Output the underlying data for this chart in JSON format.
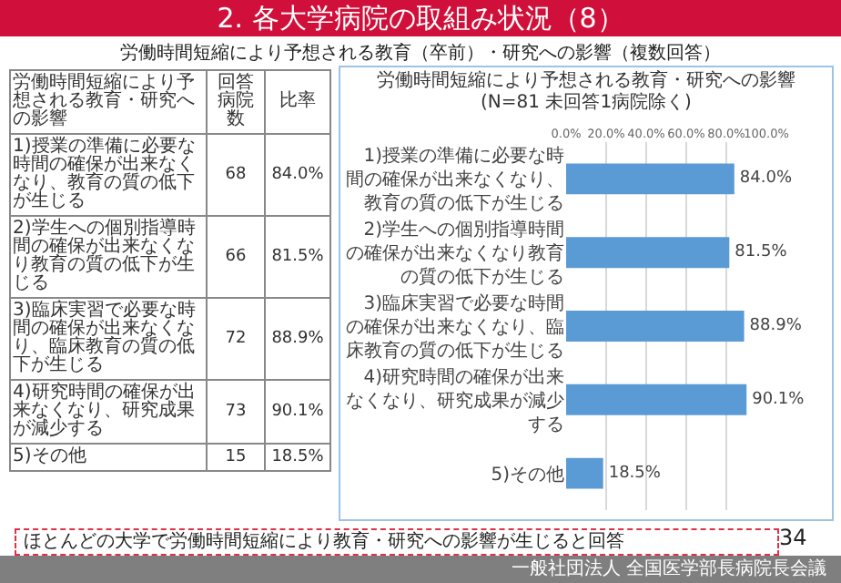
{
  "chart_data": [
    {
      "type": "other",
      "title": "2. 各大学病院の取組み状況（8）",
      "subtitle": "労働時間短縮により予想される教育（卒前）・研究への影響（複数回答）",
      "xlabel": "労働時間短縮により予想される教育・研究への影響",
      "categories": [
        "1)授業の準備に必要な時間の確保が出来なくなり、教育の質の低下が生じる",
        "2)学生への個別指導時間の確保が出来なくなり教育の質の低下が生じる",
        "3)臨床実習で必要な時間の確保が出来なくなり、臨床教育の質の低下が生じる",
        "4)研究時間の確保が出来なくなり、研究成果が減少する",
        "5)その他"
      ],
      "series": [
        {
          "name": "回答病院数",
          "values": [
            68,
            66,
            72,
            73,
            15
          ]
        },
        {
          "name": "比率",
          "values": [
            84.0,
            81.5,
            88.9,
            90.1,
            18.5
          ],
          "value_labels": [
            "84.0%",
            "81.5%",
            "88.9%",
            "90.1%",
            "18.5%"
          ]
        }
      ],
      "data_labels": true,
      "annotations": [
        "ほとんどの大学で労働時間短縮により教育・研究への影響が生じると回答",
        "34",
        "一般社団法人 全国医学部長病院長会議"
      ]
    },
    {
      "type": "bar",
      "orientation": "horizontal",
      "title": "労働時間短縮により予想される教育・研究への影響",
      "subtitle": "(N=81 未回答1病院除く)",
      "categories": [
        "1)授業の準備に必要な時間の確保が出来なくなり、教育の質の低下が生じる",
        "2)学生への個別指導時間の確保が出来なくなり教育の質の低下が生じる",
        "3)臨床実習で必要な時間の確保が出来なくなり、臨床教育の質の低下が生じる",
        "4)研究時間の確保が出来なくなり、研究成果が減少する",
        "5)その他"
      ],
      "values": [
        84.0,
        81.5,
        88.9,
        90.1,
        18.5
      ],
      "value_labels": [
        "84.0%",
        "81.5%",
        "88.9%",
        "90.1%",
        "18.5%"
      ],
      "color": "#5b9bd5",
      "xlim": [
        0,
        100
      ],
      "xticks": [
        {
          "value": 0,
          "label": "0.0%"
        },
        {
          "value": 20,
          "label": "20.0%"
        },
        {
          "value": 40,
          "label": "40.0%"
        },
        {
          "value": 60,
          "label": "60.0%"
        },
        {
          "value": 80,
          "label": "80.0%"
        },
        {
          "value": 100,
          "label": "100.0%"
        }
      ],
      "grid": "x"
    }
  ]
}
